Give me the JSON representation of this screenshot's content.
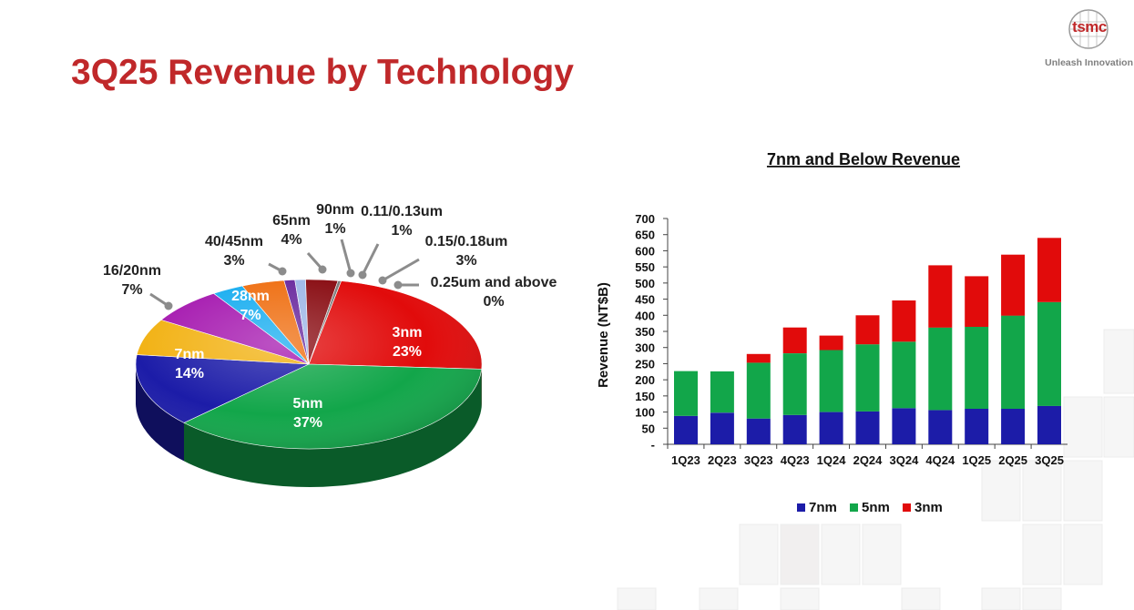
{
  "slide": {
    "title": "3Q25 Revenue by Technology",
    "logo_text": "tsmc",
    "tagline": "Unleash Innovation"
  },
  "chart_data": [
    {
      "type": "pie",
      "title": "",
      "slices": [
        {
          "label": "3nm",
          "pct_label": "23%",
          "value": 23,
          "color": "#e10b0b"
        },
        {
          "label": "5nm",
          "pct_label": "37%",
          "value": 37,
          "color": "#12a64a"
        },
        {
          "label": "7nm",
          "pct_label": "14%",
          "value": 14,
          "color": "#1c1ca8"
        },
        {
          "label": "16/20nm",
          "pct_label": "7%",
          "value": 7,
          "color": "#f2b214"
        },
        {
          "label": "28nm",
          "pct_label": "7%",
          "value": 7,
          "color": "#a61ab0"
        },
        {
          "label": "40/45nm",
          "pct_label": "3%",
          "value": 3,
          "color": "#1aaef0"
        },
        {
          "label": "65nm",
          "pct_label": "4%",
          "value": 4,
          "color": "#ef6f12"
        },
        {
          "label": "90nm",
          "pct_label": "1%",
          "value": 1,
          "color": "#6a2a9e"
        },
        {
          "label": "0.11/0.13um",
          "pct_label": "1%",
          "value": 1,
          "color": "#9fb8e8"
        },
        {
          "label": "0.15/0.18um",
          "pct_label": "3%",
          "value": 3,
          "color": "#8a0e14"
        },
        {
          "label": "0.25um and above",
          "pct_label": "0%",
          "value": 0,
          "color": "#7a7a7a"
        }
      ]
    },
    {
      "type": "bar",
      "stacked": true,
      "title": "7nm and Below Revenue",
      "ylabel": "Revenue (NT$B)",
      "xlabel": "",
      "ylim": [
        0,
        700
      ],
      "yticks": [
        "-",
        "50",
        "100",
        "150",
        "200",
        "250",
        "300",
        "350",
        "400",
        "450",
        "500",
        "550",
        "600",
        "650",
        "700"
      ],
      "categories": [
        "1Q23",
        "2Q23",
        "3Q23",
        "4Q23",
        "1Q24",
        "2Q24",
        "3Q24",
        "4Q24",
        "1Q25",
        "2Q25",
        "3Q25"
      ],
      "series": [
        {
          "name": "7nm",
          "color": "#1c1ca8",
          "values": [
            88,
            98,
            80,
            91,
            100,
            102,
            112,
            106,
            110,
            110,
            119
          ]
        },
        {
          "name": "5nm",
          "color": "#12a64a",
          "values": [
            139,
            128,
            173,
            191,
            192,
            208,
            206,
            256,
            254,
            289,
            322
          ]
        },
        {
          "name": "3nm",
          "color": "#e10b0b",
          "values": [
            0,
            0,
            27,
            80,
            45,
            90,
            128,
            193,
            157,
            189,
            199
          ]
        }
      ],
      "legend": "bottom"
    }
  ]
}
